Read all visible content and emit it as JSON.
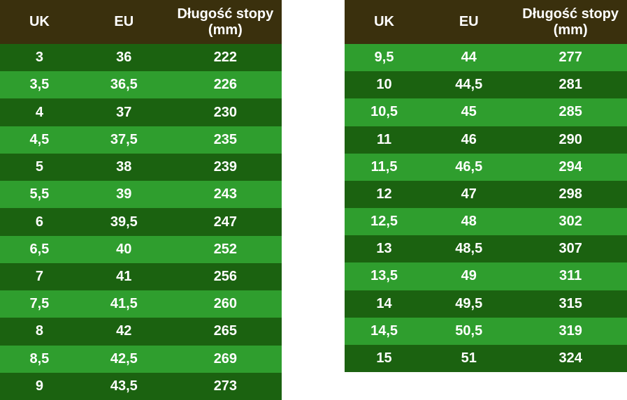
{
  "colors": {
    "header_bg": "#3a300d",
    "row_dark": "#1b6210",
    "row_light": "#2f9e2e",
    "text": "#ffffff",
    "page_bg": "#ffffff"
  },
  "chart_data": [
    {
      "type": "table",
      "title": "Shoe size conversion (left panel)",
      "columns": [
        "UK",
        "EU",
        "Długość stopy (mm)"
      ],
      "first_row_shade": "dark",
      "rows": [
        [
          "3",
          "36",
          "222"
        ],
        [
          "3,5",
          "36,5",
          "226"
        ],
        [
          "4",
          "37",
          "230"
        ],
        [
          "4,5",
          "37,5",
          "235"
        ],
        [
          "5",
          "38",
          "239"
        ],
        [
          "5,5",
          "39",
          "243"
        ],
        [
          "6",
          "39,5",
          "247"
        ],
        [
          "6,5",
          "40",
          "252"
        ],
        [
          "7",
          "41",
          "256"
        ],
        [
          "7,5",
          "41,5",
          "260"
        ],
        [
          "8",
          "42",
          "265"
        ],
        [
          "8,5",
          "42,5",
          "269"
        ],
        [
          "9",
          "43,5",
          "273"
        ]
      ]
    },
    {
      "type": "table",
      "title": "Shoe size conversion (right panel)",
      "columns": [
        "UK",
        "EU",
        "Długość stopy (mm)"
      ],
      "first_row_shade": "light",
      "rows": [
        [
          "9,5",
          "44",
          "277"
        ],
        [
          "10",
          "44,5",
          "281"
        ],
        [
          "10,5",
          "45",
          "285"
        ],
        [
          "11",
          "46",
          "290"
        ],
        [
          "11,5",
          "46,5",
          "294"
        ],
        [
          "12",
          "47",
          "298"
        ],
        [
          "12,5",
          "48",
          "302"
        ],
        [
          "13",
          "48,5",
          "307"
        ],
        [
          "13,5",
          "49",
          "311"
        ],
        [
          "14",
          "49,5",
          "315"
        ],
        [
          "14,5",
          "50,5",
          "319"
        ],
        [
          "15",
          "51",
          "324"
        ]
      ]
    }
  ]
}
